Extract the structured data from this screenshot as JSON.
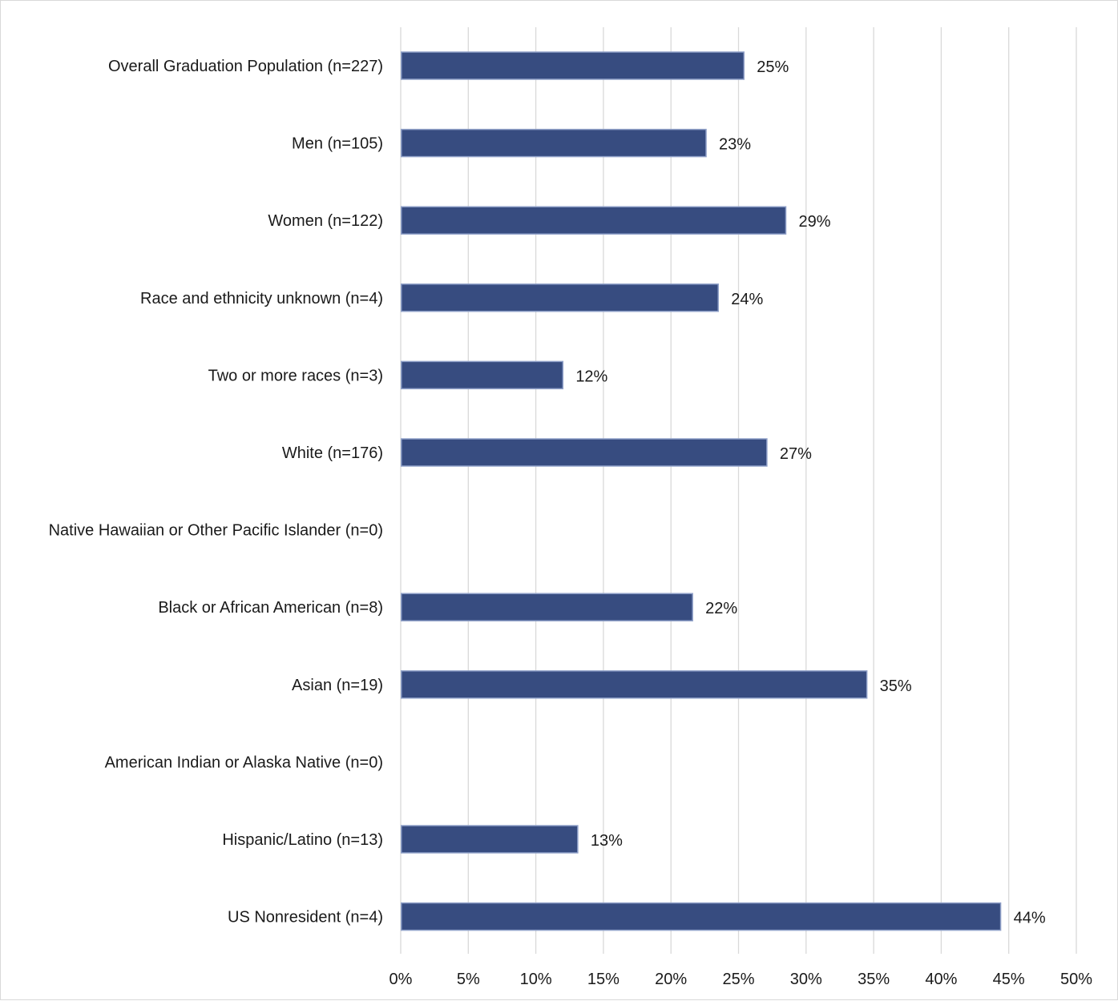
{
  "chart_data": {
    "type": "bar",
    "orientation": "horizontal",
    "categories": [
      "Overall Graduation Population (n=227)",
      "Men (n=105)",
      "Women (n=122)",
      "Race and ethnicity unknown (n=4)",
      "Two or more races (n=3)",
      "White (n=176)",
      "Native Hawaiian or Other Pacific Islander (n=0)",
      "Black or African American (n=8)",
      "Asian (n=19)",
      "American Indian or Alaska Native (n=0)",
      "Hispanic/Latino (n=13)",
      "US Nonresident (n=4)"
    ],
    "values": [
      25.4,
      22.6,
      28.5,
      23.5,
      12.0,
      27.1,
      null,
      21.6,
      34.5,
      null,
      13.1,
      44.4
    ],
    "data_labels": [
      "25%",
      "23%",
      "29%",
      "24%",
      "12%",
      "27%",
      "",
      "22%",
      "35%",
      "",
      "13%",
      "44%"
    ],
    "xlim": [
      0,
      50
    ],
    "x_ticks": [
      0,
      5,
      10,
      15,
      20,
      25,
      30,
      35,
      40,
      45,
      50
    ],
    "x_tick_labels": [
      "0%",
      "5%",
      "10%",
      "15%",
      "20%",
      "25%",
      "30%",
      "35%",
      "40%",
      "45%",
      "50%"
    ],
    "grid": "vertical",
    "legend": "none",
    "colors": {
      "bar": "#374c80",
      "bar_border": "#8fa0c8",
      "grid": "#d9d9d9",
      "text": "#1a1a1a"
    }
  }
}
